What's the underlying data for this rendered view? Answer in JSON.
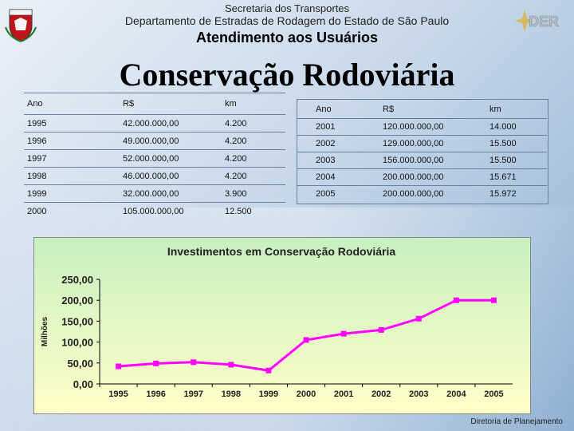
{
  "header": {
    "line1": "Secretaria dos Transportes",
    "line2": "Departamento de Estradas de Rodagem do Estado de São Paulo",
    "line3": "Atendimento aos Usuários",
    "logo_text": "DER"
  },
  "title": "Conservação Rodoviária",
  "table_left": {
    "headers": [
      "Ano",
      "R$",
      "km"
    ],
    "rows": [
      [
        "1995",
        "42.000.000,00",
        "4.200"
      ],
      [
        "1996",
        "49.000.000,00",
        "4.200"
      ],
      [
        "1997",
        "52.000.000,00",
        "4.200"
      ],
      [
        "1998",
        "46.000.000,00",
        "4.200"
      ],
      [
        "1999",
        "32.000.000,00",
        "3.900"
      ],
      [
        "2000",
        "105.000.000,00",
        "12.500"
      ]
    ]
  },
  "table_right": {
    "headers": [
      "Ano",
      "R$",
      "km"
    ],
    "rows": [
      [
        "2001",
        "120.000.000,00",
        "14.000"
      ],
      [
        "2002",
        "129.000.000,00",
        "15.500"
      ],
      [
        "2003",
        "156.000.000,00",
        "15.500"
      ],
      [
        "2004",
        "200.000.000,00",
        "15.671"
      ],
      [
        "2005",
        "200.000.000,00",
        "15.972"
      ]
    ]
  },
  "chart_data": {
    "type": "line",
    "title": "Investimentos em Conservação Rodoviária",
    "xlabel": "",
    "ylabel": "Milhões",
    "categories": [
      "1995",
      "1996",
      "1997",
      "1998",
      "1999",
      "2000",
      "2001",
      "2002",
      "2003",
      "2004",
      "2005"
    ],
    "values": [
      42,
      49,
      52,
      46,
      32,
      105,
      120,
      129,
      156,
      200,
      200
    ],
    "ylim": [
      0,
      250
    ],
    "yticks": [
      "0,00",
      "50,00",
      "100,00",
      "150,00",
      "200,00",
      "250,00"
    ],
    "grid": false,
    "line_color": "#ff00ff",
    "plot_background": [
      "#c8f0c0",
      "#ffffc8"
    ]
  },
  "footer": "Diretoria de Planejamento"
}
